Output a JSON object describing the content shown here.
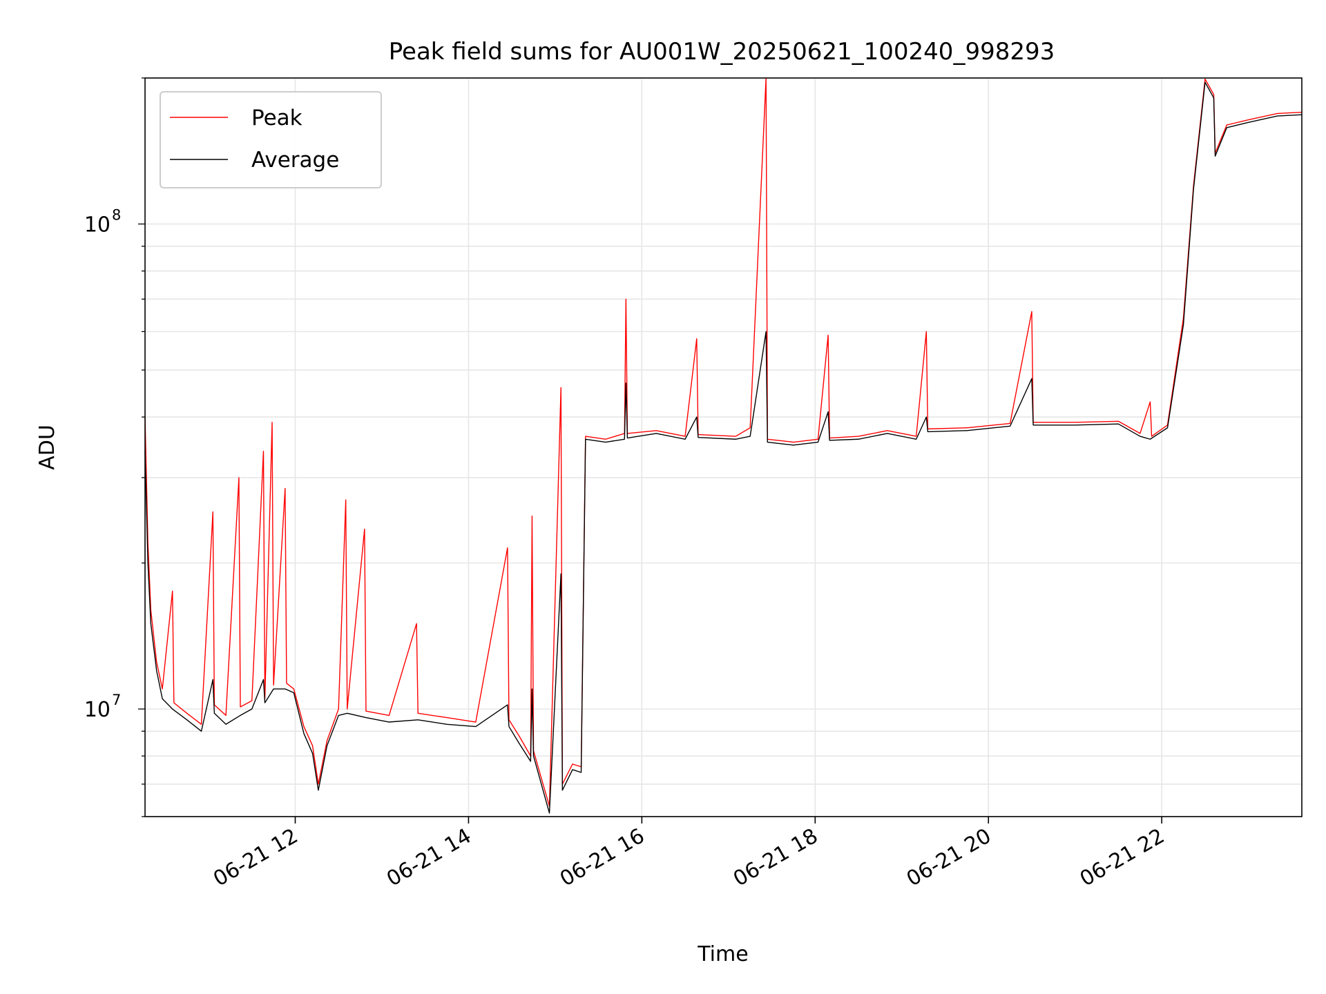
{
  "chart_data": {
    "type": "line",
    "title": "Peak field sums for AU001W_20250621_100240_998293",
    "xlabel": "Time",
    "ylabel": "ADU",
    "yscale": "log",
    "xlim": [
      "2025-06-21 10:16",
      "2025-06-21 23:37"
    ],
    "ylim": [
      6000000,
      200000000
    ],
    "grid": true,
    "legend_position": "top-left",
    "x_ticks": [
      {
        "value": "2025-06-21 12:00",
        "label": "06-21 12"
      },
      {
        "value": "2025-06-21 14:00",
        "label": "06-21 14"
      },
      {
        "value": "2025-06-21 16:00",
        "label": "06-21 16"
      },
      {
        "value": "2025-06-21 18:00",
        "label": "06-21 18"
      },
      {
        "value": "2025-06-21 20:00",
        "label": "06-21 20"
      },
      {
        "value": "2025-06-21 22:00",
        "label": "06-21 22"
      }
    ],
    "y_ticks": [
      {
        "value": 10000000,
        "base": "10",
        "exp": "7"
      },
      {
        "value": 100000000,
        "base": "10",
        "exp": "8"
      }
    ],
    "series": [
      {
        "name": "Peak",
        "color": "#ff0000",
        "points": [
          [
            "2025-06-21 10:16",
            40000000
          ],
          [
            "2025-06-21 10:18",
            22000000
          ],
          [
            "2025-06-21 10:20",
            16000000
          ],
          [
            "2025-06-21 10:24",
            12500000
          ],
          [
            "2025-06-21 10:28",
            11000000
          ],
          [
            "2025-06-21 10:35",
            17500000
          ],
          [
            "2025-06-21 10:36",
            10300000
          ],
          [
            "2025-06-21 10:45",
            9800000
          ],
          [
            "2025-06-21 10:55",
            9300000
          ],
          [
            "2025-06-21 11:03",
            25500000
          ],
          [
            "2025-06-21 11:04",
            10200000
          ],
          [
            "2025-06-21 11:12",
            9700000
          ],
          [
            "2025-06-21 11:21",
            30000000
          ],
          [
            "2025-06-21 11:22",
            10100000
          ],
          [
            "2025-06-21 11:30",
            10400000
          ],
          [
            "2025-06-21 11:38",
            34000000
          ],
          [
            "2025-06-21 11:39",
            10500000
          ],
          [
            "2025-06-21 11:44",
            39000000
          ],
          [
            "2025-06-21 11:45",
            11200000
          ],
          [
            "2025-06-21 11:53",
            28500000
          ],
          [
            "2025-06-21 11:54",
            11300000
          ],
          [
            "2025-06-21 11:59",
            11000000
          ],
          [
            "2025-06-21 12:06",
            9200000
          ],
          [
            "2025-06-21 12:12",
            8400000
          ],
          [
            "2025-06-21 12:16",
            7000000
          ],
          [
            "2025-06-21 12:22",
            8600000
          ],
          [
            "2025-06-21 12:30",
            10000000
          ],
          [
            "2025-06-21 12:35",
            27000000
          ],
          [
            "2025-06-21 12:36",
            10000000
          ],
          [
            "2025-06-21 12:48",
            23500000
          ],
          [
            "2025-06-21 12:49",
            9900000
          ],
          [
            "2025-06-21 13:05",
            9700000
          ],
          [
            "2025-06-21 13:24",
            15000000
          ],
          [
            "2025-06-21 13:25",
            9800000
          ],
          [
            "2025-06-21 13:45",
            9600000
          ],
          [
            "2025-06-21 14:05",
            9400000
          ],
          [
            "2025-06-21 14:27",
            21500000
          ],
          [
            "2025-06-21 14:28",
            9500000
          ],
          [
            "2025-06-21 14:35",
            8800000
          ],
          [
            "2025-06-21 14:43",
            8000000
          ],
          [
            "2025-06-21 14:44",
            25000000
          ],
          [
            "2025-06-21 14:45",
            8200000
          ],
          [
            "2025-06-21 14:56",
            6300000
          ],
          [
            "2025-06-21 15:04",
            46000000
          ],
          [
            "2025-06-21 15:05",
            7000000
          ],
          [
            "2025-06-21 15:12",
            7700000
          ],
          [
            "2025-06-21 15:18",
            7600000
          ],
          [
            "2025-06-21 15:21",
            36500000
          ],
          [
            "2025-06-21 15:35",
            36000000
          ],
          [
            "2025-06-21 15:48",
            37000000
          ],
          [
            "2025-06-21 15:49",
            70000000
          ],
          [
            "2025-06-21 15:50",
            37000000
          ],
          [
            "2025-06-21 16:10",
            37500000
          ],
          [
            "2025-06-21 16:30",
            36500000
          ],
          [
            "2025-06-21 16:38",
            58000000
          ],
          [
            "2025-06-21 16:39",
            36800000
          ],
          [
            "2025-06-21 17:05",
            36500000
          ],
          [
            "2025-06-21 17:15",
            38000000
          ],
          [
            "2025-06-21 17:26",
            200000000
          ],
          [
            "2025-06-21 17:27",
            36000000
          ],
          [
            "2025-06-21 17:45",
            35500000
          ],
          [
            "2025-06-21 18:02",
            36000000
          ],
          [
            "2025-06-21 18:09",
            59000000
          ],
          [
            "2025-06-21 18:10",
            36200000
          ],
          [
            "2025-06-21 18:30",
            36500000
          ],
          [
            "2025-06-21 18:50",
            37500000
          ],
          [
            "2025-06-21 19:10",
            36500000
          ],
          [
            "2025-06-21 19:17",
            60000000
          ],
          [
            "2025-06-21 19:18",
            37800000
          ],
          [
            "2025-06-21 19:45",
            38000000
          ],
          [
            "2025-06-21 20:15",
            38800000
          ],
          [
            "2025-06-21 20:30",
            66000000
          ],
          [
            "2025-06-21 20:31",
            39000000
          ],
          [
            "2025-06-21 21:00",
            39000000
          ],
          [
            "2025-06-21 21:30",
            39200000
          ],
          [
            "2025-06-21 21:45",
            37000000
          ],
          [
            "2025-06-21 21:52",
            43000000
          ],
          [
            "2025-06-21 21:53",
            36500000
          ],
          [
            "2025-06-21 22:04",
            38500000
          ],
          [
            "2025-06-21 22:15",
            64000000
          ],
          [
            "2025-06-21 22:22",
            120000000
          ],
          [
            "2025-06-21 22:30",
            199000000
          ],
          [
            "2025-06-21 22:36",
            185000000
          ],
          [
            "2025-06-21 22:37",
            140000000
          ],
          [
            "2025-06-21 22:45",
            160000000
          ],
          [
            "2025-06-21 23:00",
            164000000
          ],
          [
            "2025-06-21 23:20",
            169000000
          ],
          [
            "2025-06-21 23:37",
            170000000
          ]
        ]
      },
      {
        "name": "Average",
        "color": "#000000",
        "points": [
          [
            "2025-06-21 10:16",
            34000000
          ],
          [
            "2025-06-21 10:18",
            20000000
          ],
          [
            "2025-06-21 10:20",
            15000000
          ],
          [
            "2025-06-21 10:24",
            12000000
          ],
          [
            "2025-06-21 10:28",
            10500000
          ],
          [
            "2025-06-21 10:35",
            10000000
          ],
          [
            "2025-06-21 10:45",
            9500000
          ],
          [
            "2025-06-21 10:55",
            9000000
          ],
          [
            "2025-06-21 11:03",
            11500000
          ],
          [
            "2025-06-21 11:04",
            9800000
          ],
          [
            "2025-06-21 11:12",
            9300000
          ],
          [
            "2025-06-21 11:22",
            9700000
          ],
          [
            "2025-06-21 11:30",
            10000000
          ],
          [
            "2025-06-21 11:38",
            11500000
          ],
          [
            "2025-06-21 11:39",
            10300000
          ],
          [
            "2025-06-21 11:45",
            11000000
          ],
          [
            "2025-06-21 11:53",
            11000000
          ],
          [
            "2025-06-21 11:59",
            10800000
          ],
          [
            "2025-06-21 12:06",
            8900000
          ],
          [
            "2025-06-21 12:12",
            8100000
          ],
          [
            "2025-06-21 12:16",
            6800000
          ],
          [
            "2025-06-21 12:22",
            8400000
          ],
          [
            "2025-06-21 12:30",
            9700000
          ],
          [
            "2025-06-21 12:36",
            9800000
          ],
          [
            "2025-06-21 12:49",
            9600000
          ],
          [
            "2025-06-21 13:05",
            9400000
          ],
          [
            "2025-06-21 13:25",
            9500000
          ],
          [
            "2025-06-21 13:45",
            9300000
          ],
          [
            "2025-06-21 14:05",
            9200000
          ],
          [
            "2025-06-21 14:27",
            10200000
          ],
          [
            "2025-06-21 14:28",
            9200000
          ],
          [
            "2025-06-21 14:35",
            8500000
          ],
          [
            "2025-06-21 14:43",
            7800000
          ],
          [
            "2025-06-21 14:44",
            11000000
          ],
          [
            "2025-06-21 14:45",
            8000000
          ],
          [
            "2025-06-21 14:56",
            6100000
          ],
          [
            "2025-06-21 15:04",
            19000000
          ],
          [
            "2025-06-21 15:05",
            6800000
          ],
          [
            "2025-06-21 15:12",
            7500000
          ],
          [
            "2025-06-21 15:18",
            7400000
          ],
          [
            "2025-06-21 15:21",
            36000000
          ],
          [
            "2025-06-21 15:35",
            35500000
          ],
          [
            "2025-06-21 15:48",
            36000000
          ],
          [
            "2025-06-21 15:49",
            47000000
          ],
          [
            "2025-06-21 15:50",
            36200000
          ],
          [
            "2025-06-21 16:10",
            37000000
          ],
          [
            "2025-06-21 16:30",
            36000000
          ],
          [
            "2025-06-21 16:38",
            40000000
          ],
          [
            "2025-06-21 16:39",
            36300000
          ],
          [
            "2025-06-21 17:05",
            36000000
          ],
          [
            "2025-06-21 17:15",
            36500000
          ],
          [
            "2025-06-21 17:26",
            60000000
          ],
          [
            "2025-06-21 17:27",
            35500000
          ],
          [
            "2025-06-21 17:45",
            35000000
          ],
          [
            "2025-06-21 18:02",
            35500000
          ],
          [
            "2025-06-21 18:09",
            41000000
          ],
          [
            "2025-06-21 18:10",
            35800000
          ],
          [
            "2025-06-21 18:30",
            36000000
          ],
          [
            "2025-06-21 18:50",
            37000000
          ],
          [
            "2025-06-21 19:10",
            36000000
          ],
          [
            "2025-06-21 19:17",
            40000000
          ],
          [
            "2025-06-21 19:18",
            37300000
          ],
          [
            "2025-06-21 19:45",
            37500000
          ],
          [
            "2025-06-21 20:15",
            38300000
          ],
          [
            "2025-06-21 20:30",
            48000000
          ],
          [
            "2025-06-21 20:31",
            38500000
          ],
          [
            "2025-06-21 21:00",
            38500000
          ],
          [
            "2025-06-21 21:30",
            38700000
          ],
          [
            "2025-06-21 21:45",
            36500000
          ],
          [
            "2025-06-21 21:52",
            36000000
          ],
          [
            "2025-06-21 22:04",
            38000000
          ],
          [
            "2025-06-21 22:15",
            62000000
          ],
          [
            "2025-06-21 22:22",
            118000000
          ],
          [
            "2025-06-21 22:30",
            196000000
          ],
          [
            "2025-06-21 22:36",
            182000000
          ],
          [
            "2025-06-21 22:37",
            138000000
          ],
          [
            "2025-06-21 22:45",
            158000000
          ],
          [
            "2025-06-21 23:00",
            162000000
          ],
          [
            "2025-06-21 23:20",
            167000000
          ],
          [
            "2025-06-21 23:37",
            168000000
          ]
        ]
      }
    ]
  }
}
